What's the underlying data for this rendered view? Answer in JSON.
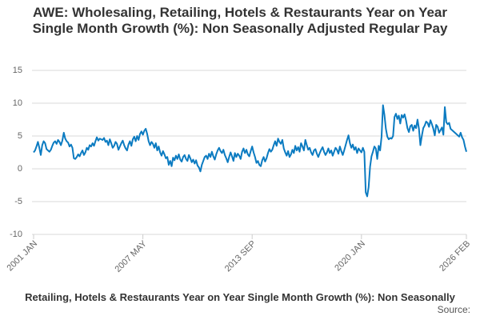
{
  "chart_data": {
    "type": "line",
    "title": "AWE: Wholesaling, Retailing, Hotels & Restaurants Year on Year Single Month Growth (%): Non Seasonally Adjusted Regular Pay",
    "source": "Source:",
    "ylim": [
      -10,
      15
    ],
    "yticks": [
      -10,
      -5,
      0,
      5,
      10,
      15
    ],
    "grid": true,
    "categories": [
      "2001 JAN",
      null,
      null,
      null,
      null,
      null,
      null,
      null,
      null,
      null,
      null,
      null,
      null,
      null,
      null,
      null,
      null,
      null,
      null,
      null,
      null,
      null,
      null,
      null,
      null,
      null,
      null,
      null,
      null,
      null,
      null,
      null,
      null,
      null,
      null,
      null,
      null,
      null,
      null,
      null,
      null,
      null,
      null,
      null,
      null,
      null,
      null,
      null,
      null,
      null,
      null,
      null,
      null,
      null,
      null,
      null,
      null,
      null,
      null,
      null,
      null,
      null,
      null,
      null,
      null,
      null,
      null,
      null,
      null,
      null,
      null,
      null,
      null,
      null,
      null,
      null,
      "2007 MAY",
      null,
      null,
      null,
      null,
      null,
      null,
      null,
      null,
      null,
      null,
      null,
      null,
      null,
      null,
      null,
      null,
      null,
      null,
      null,
      null,
      null,
      null,
      null,
      null,
      null,
      null,
      null,
      null,
      null,
      null,
      null,
      null,
      null,
      null,
      null,
      null,
      null,
      null,
      null,
      null,
      null,
      null,
      null,
      null,
      null,
      null,
      null,
      null,
      null,
      null,
      null,
      null,
      null,
      null,
      null,
      null,
      null,
      null,
      null,
      null,
      null,
      null,
      null,
      null,
      null,
      null,
      null,
      null,
      null,
      null,
      null,
      null,
      null,
      null,
      null,
      "2013 SEP",
      null,
      null,
      null,
      null,
      null,
      null,
      null,
      null,
      null,
      null,
      null,
      null,
      null,
      null,
      null,
      null,
      null,
      null,
      null,
      null,
      null,
      null,
      null,
      null,
      null,
      null,
      null,
      null,
      null,
      null,
      null,
      null,
      null,
      null,
      null,
      null,
      null,
      null,
      null,
      null,
      null,
      null,
      null,
      null,
      null,
      null,
      null,
      null,
      null,
      null,
      null,
      null,
      null,
      null,
      null,
      null,
      null,
      null,
      null,
      null,
      null,
      null,
      null,
      null,
      null,
      null,
      null,
      null,
      null,
      null,
      null,
      null,
      null,
      null,
      null,
      "2020 JAN",
      null,
      null,
      null,
      null,
      null,
      null,
      null,
      null,
      null,
      null,
      null,
      null,
      null,
      null,
      null,
      null,
      null,
      null,
      null,
      null,
      null,
      null,
      null,
      null,
      null,
      null,
      null,
      null,
      null,
      null,
      null,
      null,
      null,
      null,
      null,
      null,
      null,
      null,
      null,
      null,
      null,
      null,
      null,
      null,
      null,
      null,
      null,
      null,
      null,
      null,
      null,
      null,
      null,
      null,
      null,
      null,
      null,
      null,
      null,
      null,
      null,
      null,
      null,
      null,
      null,
      null,
      null,
      null,
      null,
      null,
      null,
      null,
      "2026 FEB"
    ],
    "series": [
      {
        "name": "Retailing, Hotels & Restaurants Year on Year Single Month Growth (%): Non Seasonally",
        "color": "#0b7bc1",
        "values": [
          2.5,
          2.8,
          3.4,
          4.1,
          3.2,
          2.1,
          3.6,
          4.2,
          3.9,
          3.0,
          2.8,
          2.6,
          2.9,
          3.5,
          4.0,
          4.2,
          3.8,
          4.4,
          4.1,
          3.6,
          4.3,
          5.5,
          4.6,
          4.2,
          4.0,
          3.4,
          3.7,
          3.2,
          1.6,
          1.5,
          1.8,
          2.2,
          1.9,
          2.4,
          2.8,
          2.1,
          2.5,
          3.2,
          2.9,
          3.6,
          3.4,
          3.9,
          3.5,
          4.2,
          4.8,
          4.3,
          4.6,
          4.5,
          4.4,
          4.7,
          4.1,
          4.3,
          3.6,
          4.5,
          3.9,
          3.2,
          3.5,
          4.1,
          3.8,
          2.9,
          3.4,
          3.9,
          4.3,
          3.6,
          3.1,
          2.8,
          3.7,
          4.2,
          3.5,
          4.5,
          4.9,
          4.2,
          5.0,
          4.4,
          5.3,
          5.7,
          5.2,
          5.8,
          6.1,
          5.3,
          4.2,
          3.6,
          4.1,
          3.8,
          3.2,
          3.9,
          2.8,
          3.4,
          2.5,
          2.0,
          2.7,
          2.2,
          1.6,
          1.8,
          0.6,
          1.2,
          0.4,
          1.7,
          1.3,
          2.0,
          1.5,
          2.2,
          1.4,
          1.1,
          1.8,
          2.1,
          1.5,
          1.2,
          2.1,
          1.6,
          1.0,
          1.4,
          0.8,
          1.3,
          0.5,
          0.2,
          -0.4,
          0.6,
          1.2,
          1.8,
          2.0,
          1.5,
          2.3,
          1.8,
          2.6,
          1.9,
          1.4,
          2.2,
          2.8,
          3.2,
          2.7,
          2.4,
          2.9,
          2.1,
          1.6,
          1.0,
          1.8,
          2.5,
          1.9,
          1.2,
          2.4,
          1.8,
          2.3,
          2.0,
          1.5,
          2.6,
          3.1,
          2.4,
          2.9,
          2.2,
          1.9,
          2.7,
          3.4,
          2.5,
          1.8,
          0.9,
          1.2,
          0.6,
          0.4,
          1.3,
          1.8,
          1.1,
          1.6,
          2.4,
          3.0,
          2.6,
          2.9,
          3.6,
          4.2,
          3.5,
          4.6,
          4.1,
          3.8,
          4.4,
          3.1,
          2.5,
          2.0,
          2.7,
          1.8,
          2.2,
          2.9,
          2.4,
          3.5,
          2.8,
          3.3,
          2.6,
          3.9,
          3.4,
          2.8,
          4.4,
          3.6,
          2.9,
          3.2,
          2.5,
          2.1,
          2.8,
          3.0,
          2.3,
          1.8,
          2.4,
          2.9,
          3.3,
          2.6,
          2.1,
          2.5,
          3.1,
          2.4,
          2.8,
          2.0,
          2.6,
          3.2,
          2.9,
          2.3,
          3.4,
          2.7,
          2.1,
          2.8,
          3.6,
          4.4,
          5.1,
          3.9,
          3.2,
          3.7,
          2.9,
          3.3,
          2.4,
          3.1,
          2.8,
          2.5,
          3.2,
          2.6,
          -3.6,
          -4.2,
          -2.8,
          0.3,
          1.9,
          2.6,
          3.4,
          3.1,
          1.5,
          3.5,
          2.8,
          4.9,
          9.7,
          8.2,
          6.1,
          4.9,
          4.5,
          4.7,
          4.6,
          5.0,
          7.9,
          8.4,
          7.6,
          8.1,
          6.9,
          8.2,
          7.8,
          8.3,
          7.4,
          6.2,
          5.6,
          6.5,
          6.7,
          5.8,
          6.6,
          6.2,
          7.5,
          6.1,
          3.6,
          5.0,
          6.2,
          6.6,
          7.2,
          7.0,
          6.4,
          7.4,
          6.8,
          6.1,
          5.1,
          6.7,
          6.4,
          5.5,
          5.9,
          6.3,
          5.2,
          9.4,
          7.1,
          6.8,
          7.0,
          6.1,
          5.9,
          5.7,
          5.5,
          5.3,
          5.1,
          4.9,
          5.5,
          4.8,
          4.4,
          3.4,
          2.6
        ]
      }
    ]
  }
}
